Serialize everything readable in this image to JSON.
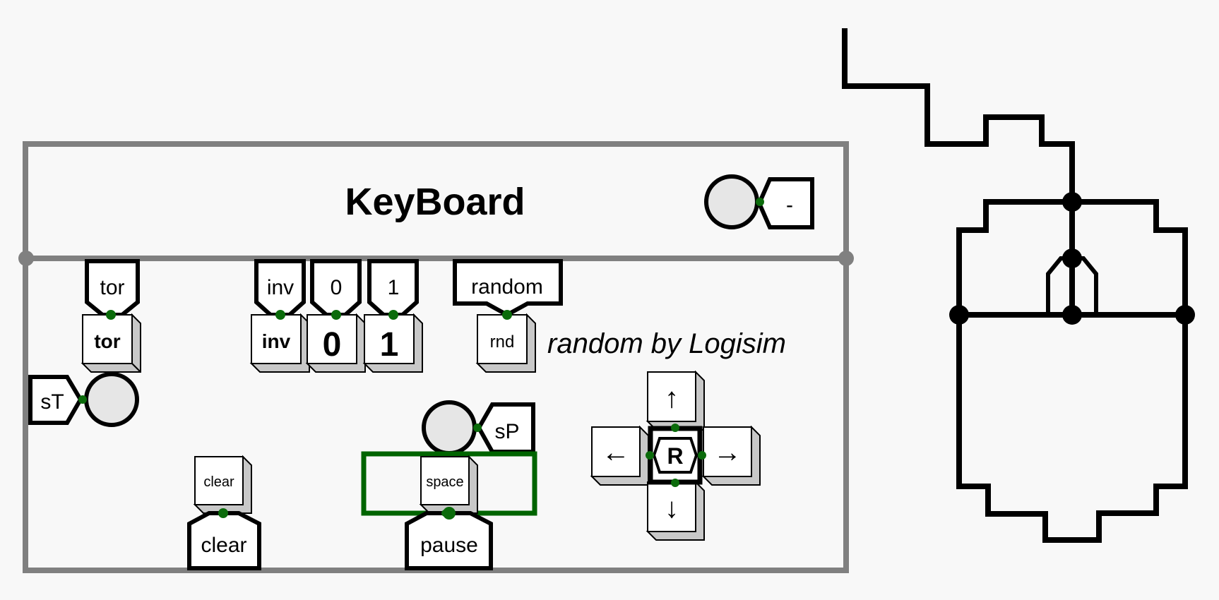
{
  "keyboard": {
    "title": "KeyBoard",
    "led_minus_label": "-",
    "tor": {
      "tunnel": "tor",
      "key": "tor"
    },
    "inv": {
      "tunnel": "inv",
      "key": "inv"
    },
    "zero": {
      "tunnel": "0",
      "key": "0"
    },
    "one": {
      "tunnel": "1",
      "key": "1"
    },
    "random": {
      "tunnel": "random",
      "key": "rnd",
      "caption": "random by Logisim"
    },
    "st_label": "sT",
    "sp_label": "sP",
    "clear": {
      "key": "clear",
      "tunnel": "clear"
    },
    "space": {
      "key": "space",
      "tunnel": "pause"
    },
    "arrows": {
      "up": "↑",
      "down": "↓",
      "left": "←",
      "right": "→",
      "center": "R"
    }
  },
  "colors": {
    "frame": "#808080",
    "wire_green": "#006400",
    "pin_green": "#0b6b0b",
    "key_face": "#ffffff",
    "key_side": "#c8c8c8",
    "led_fill": "#e6e6e6",
    "background": "#f8f8f8"
  }
}
